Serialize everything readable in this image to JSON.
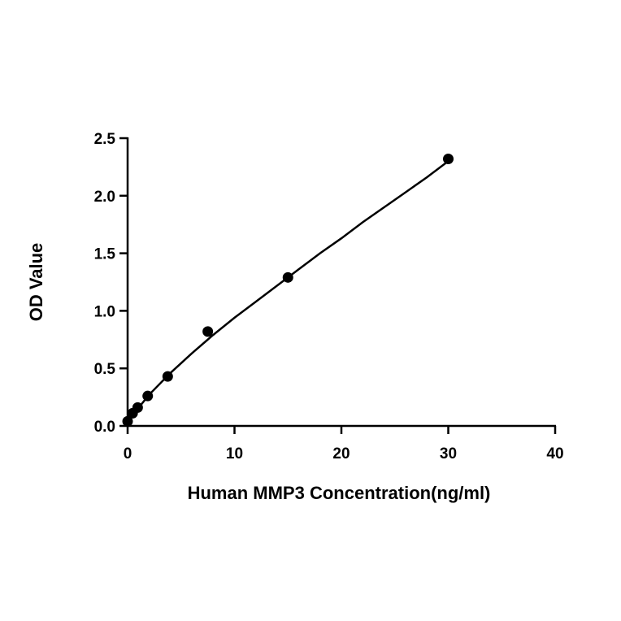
{
  "chart_data": {
    "type": "scatter",
    "title": "",
    "xlabel": "Human MMP3 Concentration(ng/ml)",
    "ylabel": "OD Value",
    "xlim": [
      0,
      40
    ],
    "ylim": [
      0,
      2.5
    ],
    "x_ticks": [
      0,
      10,
      20,
      30,
      40
    ],
    "x_tick_labels": [
      "0",
      "10",
      "20",
      "30",
      "40"
    ],
    "y_ticks": [
      0,
      0.5,
      1.0,
      1.5,
      2.0,
      2.5
    ],
    "y_tick_labels": [
      "0.0",
      "0.5",
      "1.0",
      "1.5",
      "2.0",
      "2.5"
    ],
    "grid": false,
    "legend": "none",
    "marker_color": "#000000",
    "line_color": "#000000",
    "series": [
      {
        "x": [
          0,
          0.47,
          0.94,
          1.88,
          3.75,
          7.5,
          15,
          30
        ],
        "y": [
          0.04,
          0.11,
          0.16,
          0.26,
          0.43,
          0.82,
          1.29,
          2.32
        ]
      }
    ],
    "fit_curve": {
      "x": [
        0,
        2,
        4,
        6,
        8,
        10,
        12,
        14,
        16,
        18,
        20,
        22,
        24,
        26,
        28,
        30
      ],
      "y": [
        0.04,
        0.27,
        0.46,
        0.63,
        0.79,
        0.94,
        1.08,
        1.22,
        1.36,
        1.5,
        1.63,
        1.77,
        1.9,
        2.03,
        2.16,
        2.3
      ]
    }
  }
}
